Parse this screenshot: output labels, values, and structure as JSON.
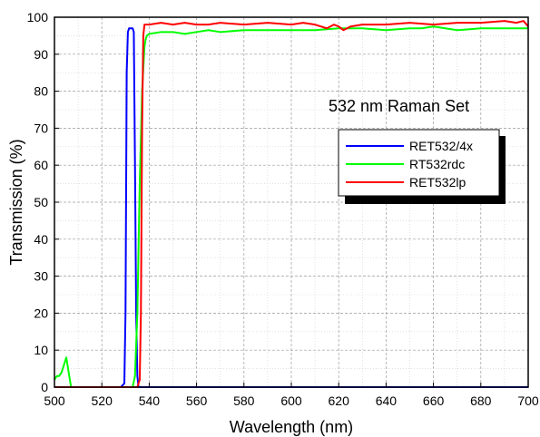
{
  "chart_data": {
    "type": "line",
    "annotation": "532 nm Raman Set",
    "xlabel": "Wavelength (nm)",
    "ylabel": "Transmission (%)",
    "xlim": [
      500,
      700
    ],
    "ylim": [
      0,
      100
    ],
    "x_ticks": [
      500,
      520,
      540,
      560,
      580,
      600,
      620,
      640,
      660,
      680,
      700
    ],
    "y_ticks": [
      0,
      10,
      20,
      30,
      40,
      50,
      60,
      70,
      80,
      90,
      100
    ],
    "grid": true,
    "legend_position": "right",
    "series": [
      {
        "name": "RET532/4x",
        "color": "#0000ff",
        "x": [
          500,
          528,
          529.5,
          530,
          530.5,
          531,
          531.5,
          532,
          533,
          533.5,
          534,
          534.5,
          535,
          535.5,
          536,
          540,
          600,
          700
        ],
        "y": [
          0,
          0,
          1,
          20,
          85,
          96,
          97,
          97,
          97,
          96,
          60,
          20,
          3,
          0,
          0,
          0,
          0,
          0
        ]
      },
      {
        "name": "RT532rdc",
        "color": "#00ff00",
        "x": [
          500,
          501,
          502,
          503,
          504,
          505,
          506,
          507,
          508,
          509,
          510,
          530,
          533,
          534,
          535,
          536,
          537,
          538,
          538.5,
          539,
          540,
          545,
          550,
          555,
          560,
          565,
          570,
          580,
          590,
          600,
          610,
          620,
          630,
          640,
          650,
          655,
          660,
          670,
          680,
          690,
          700
        ],
        "y": [
          2,
          3,
          3,
          4,
          6,
          8,
          4,
          0,
          0,
          0,
          0,
          0,
          0,
          3,
          20,
          55,
          80,
          92,
          94,
          95,
          95.5,
          96,
          96,
          95.5,
          96,
          96.5,
          96,
          96.5,
          96.5,
          96.5,
          96.5,
          97,
          97,
          96.5,
          97,
          97,
          97.5,
          96.5,
          97,
          97,
          97
        ]
      },
      {
        "name": "RET532lp",
        "color": "#ff0000",
        "x": [
          500,
          535,
          536,
          536.5,
          537,
          537.5,
          538,
          540,
          545,
          550,
          555,
          560,
          565,
          570,
          580,
          590,
          600,
          605,
          610,
          615,
          618,
          620,
          622,
          625,
          630,
          640,
          650,
          660,
          670,
          680,
          690,
          695,
          698,
          700
        ],
        "y": [
          0,
          0,
          2,
          20,
          70,
          95,
          98,
          98,
          98.5,
          98,
          98.5,
          98,
          98,
          98.5,
          98,
          98.5,
          98,
          98.5,
          98,
          97,
          98,
          97.5,
          96.5,
          97.5,
          98,
          98,
          98.5,
          98,
          98.5,
          98.5,
          99,
          98.5,
          99,
          97.5
        ]
      }
    ]
  }
}
